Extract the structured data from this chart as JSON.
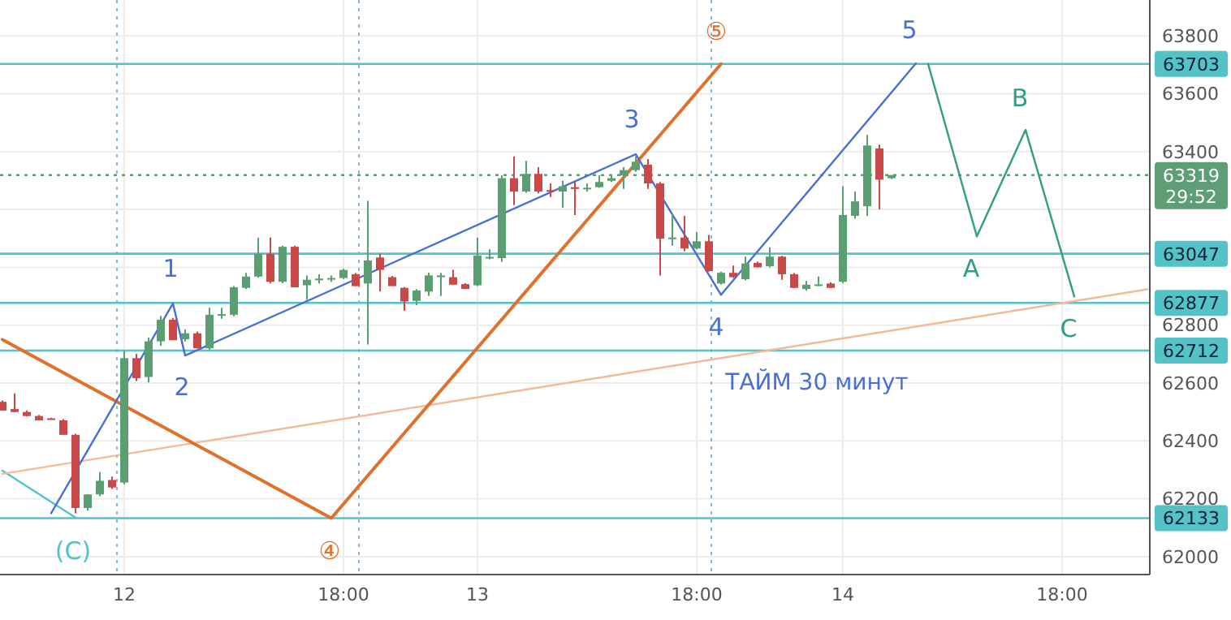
{
  "chart_data": {
    "type": "candlestick",
    "categories": [
      null,
      null,
      null,
      null,
      null,
      null,
      null,
      null,
      null,
      null,
      "12",
      null,
      null,
      null,
      null,
      null,
      null,
      null,
      null,
      null,
      null,
      null,
      null,
      null,
      null,
      null,
      null,
      null,
      "18:00",
      null,
      null,
      null,
      null,
      null,
      null,
      null,
      null,
      null,
      null,
      "13",
      null,
      null,
      null,
      null,
      null,
      null,
      null,
      null,
      null,
      null,
      null,
      null,
      null,
      null,
      null,
      null,
      null,
      "18:00",
      null,
      null,
      null,
      null,
      null,
      null,
      null,
      null,
      null,
      null,
      null,
      "14",
      null,
      null,
      null,
      null,
      null,
      null,
      null,
      null,
      null,
      null,
      null,
      null,
      null,
      null,
      null,
      null,
      null,
      "18:00",
      null,
      null,
      null,
      null,
      null,
      null,
      null
    ],
    "ohlc": [
      [
        62535,
        62540,
        62505,
        62505
      ],
      [
        62510,
        62564,
        62499,
        62500
      ],
      [
        62500,
        62505,
        62485,
        62486
      ],
      [
        62486,
        62490,
        62471,
        62471
      ],
      [
        62478,
        62480,
        62475,
        62476
      ],
      [
        62471,
        62475,
        62421,
        62421
      ],
      [
        62421,
        62425,
        62150,
        62168
      ],
      [
        62168,
        62215,
        62159,
        62215
      ],
      [
        62215,
        62293,
        62209,
        62262
      ],
      [
        62265,
        62277,
        62234,
        62239
      ],
      [
        62256,
        62710,
        62250,
        62686
      ],
      [
        62686,
        62701,
        62607,
        62617
      ],
      [
        62621,
        62757,
        62602,
        62744
      ],
      [
        62744,
        62832,
        62729,
        62819
      ],
      [
        62819,
        62825,
        62748,
        62748
      ],
      [
        62751,
        62785,
        62744,
        62772
      ],
      [
        62772,
        62778,
        62720,
        62720
      ],
      [
        62720,
        62860,
        62715,
        62836
      ],
      [
        62836,
        62860,
        62822,
        62838
      ],
      [
        62836,
        62935,
        62830,
        62931
      ],
      [
        62929,
        62981,
        62925,
        62968
      ],
      [
        62968,
        63103,
        62965,
        63047
      ],
      [
        63047,
        63103,
        62944,
        62950
      ],
      [
        62950,
        63075,
        62945,
        63071
      ],
      [
        63071,
        63075,
        62931,
        62931
      ],
      [
        62938,
        62972,
        62888,
        62957
      ],
      [
        62959,
        62976,
        62944,
        62961
      ],
      [
        62961,
        62972,
        62950,
        62963
      ],
      [
        62963,
        62995,
        62960,
        62991
      ],
      [
        62976,
        62980,
        62935,
        62935
      ],
      [
        62944,
        63230,
        62733,
        63024
      ],
      [
        63034,
        63047,
        62916,
        62991
      ],
      [
        62966,
        62970,
        62935,
        62935
      ],
      [
        62929,
        62932,
        62850,
        62882
      ],
      [
        62884,
        62925,
        62869,
        62920
      ],
      [
        62916,
        62981,
        62901,
        62972
      ],
      [
        62966,
        62981,
        62901,
        62972
      ],
      [
        62966,
        62991,
        62940,
        62940
      ],
      [
        62942,
        62945,
        62925,
        62925
      ],
      [
        62938,
        63103,
        62935,
        63041
      ],
      [
        63034,
        63062,
        63028,
        63036
      ],
      [
        63032,
        63318,
        63019,
        63308
      ],
      [
        63308,
        63383,
        63215,
        63262
      ],
      [
        63262,
        63368,
        63258,
        63323
      ],
      [
        63323,
        63346,
        63256,
        63262
      ],
      [
        63267,
        63290,
        63243,
        63265
      ],
      [
        63262,
        63299,
        63206,
        63280
      ],
      [
        63277,
        63299,
        63181,
        63271
      ],
      [
        63273,
        63290,
        63262,
        63275
      ],
      [
        63277,
        63318,
        63275,
        63295
      ],
      [
        63299,
        63315,
        63295,
        63308
      ],
      [
        63318,
        63346,
        63271,
        63336
      ],
      [
        63336,
        63383,
        63330,
        63365
      ],
      [
        63355,
        63374,
        63271,
        63290
      ],
      [
        63290,
        63295,
        62972,
        63099
      ],
      [
        63100,
        63187,
        63075,
        63103
      ],
      [
        63103,
        63178,
        63056,
        63065
      ],
      [
        63065,
        63122,
        63062,
        63090
      ],
      [
        63090,
        63112,
        62985,
        62987
      ],
      [
        62944,
        62985,
        62940,
        62981
      ],
      [
        62981,
        63006,
        62963,
        62966
      ],
      [
        62959,
        63037,
        62955,
        63013
      ],
      [
        63015,
        63020,
        63000,
        63000
      ],
      [
        63004,
        63069,
        63000,
        63037
      ],
      [
        63037,
        63040,
        62957,
        62976
      ],
      [
        62976,
        62980,
        62929,
        62929
      ],
      [
        62925,
        62953,
        62920,
        62940
      ],
      [
        62940,
        62968,
        62935,
        62941
      ],
      [
        62944,
        62948,
        62929,
        62929
      ],
      [
        62950,
        63280,
        62945,
        63181
      ],
      [
        63178,
        63262,
        63168,
        63228
      ],
      [
        63211,
        63458,
        63178,
        63421
      ],
      [
        63411,
        63424,
        63200,
        63303
      ],
      [
        63308,
        63319,
        63305,
        63319
      ],
      null,
      null,
      null,
      null,
      null,
      null,
      null,
      null,
      null,
      null,
      null,
      null,
      null,
      null,
      null,
      null,
      null,
      null,
      null,
      null,
      null
    ],
    "colors": [
      "#c94848",
      "#c94848",
      "#c94848",
      "#c94848",
      "#c94848",
      "#c94848",
      "#c94848",
      "#5b9e72",
      "#5b9e72",
      "#c94848",
      "#5b9e72",
      "#c94848",
      "#5b9e72",
      "#5b9e72",
      "#c94848",
      "#5b9e72",
      "#c94848",
      "#5b9e72",
      "#5b9e72",
      "#5b9e72",
      "#5b9e72",
      "#5b9e72",
      "#c94848",
      "#5b9e72",
      "#c94848",
      "#5b9e72",
      "#5b9e72",
      "#5b9e72",
      "#5b9e72",
      "#c94848",
      "#5b9e72",
      "#c94848",
      "#c94848",
      "#c94848",
      "#5b9e72",
      "#5b9e72",
      "#5b9e72",
      "#c94848",
      "#c94848",
      "#5b9e72",
      "#5b9e72",
      "#5b9e72",
      "#c94848",
      "#5b9e72",
      "#c94848",
      "#c94848",
      "#5b9e72",
      "#c94848",
      "#5b9e72",
      "#5b9e72",
      "#5b9e72",
      "#5b9e72",
      "#5b9e72",
      "#c94848",
      "#c94848",
      "#5b9e72",
      "#c94848",
      "#5b9e72",
      "#c94848",
      "#5b9e72",
      "#c94848",
      "#5b9e72",
      "#c94848",
      "#5b9e72",
      "#c94848",
      "#c94848",
      "#5b9e72",
      "#5b9e72",
      "#c94848",
      "#5b9e72",
      "#5b9e72",
      "#5b9e72",
      "#c94848",
      "#5b9e72",
      null,
      null,
      null,
      null,
      null,
      null,
      null,
      null,
      null,
      null,
      null,
      null,
      null,
      null,
      null,
      null,
      null,
      null,
      null,
      null,
      null
    ],
    "series": [
      {
        "type": "line",
        "values": [
          62297,
          null,
          null,
          null,
          null,
          null,
          62135,
          null,
          null,
          null,
          null,
          null,
          null,
          null,
          null,
          null,
          null,
          null,
          null,
          null,
          null,
          null,
          null,
          null,
          null,
          null,
          null,
          null,
          null,
          null,
          null,
          null,
          null,
          null,
          null,
          null,
          null,
          null,
          null,
          null,
          null,
          null,
          null,
          null,
          null,
          null,
          null,
          null,
          null,
          null,
          null,
          null,
          null,
          null,
          null,
          null,
          null,
          null,
          null,
          null,
          null,
          null,
          null,
          null,
          null,
          null,
          null,
          null,
          null,
          null,
          null,
          null,
          null,
          null,
          null,
          null,
          null,
          null,
          null,
          null,
          null,
          null,
          null,
          null,
          null,
          null,
          null,
          null,
          null,
          null,
          null,
          null,
          null,
          null,
          null
        ],
        "color": "#53c2c9"
      },
      {
        "type": "line",
        "values": [
          62286,
          null,
          null,
          null,
          null,
          null,
          null,
          null,
          null,
          null,
          null,
          null,
          null,
          null,
          null,
          null,
          null,
          null,
          null,
          null,
          null,
          null,
          null,
          null,
          null,
          null,
          null,
          null,
          null,
          null,
          null,
          null,
          null,
          null,
          null,
          null,
          null,
          null,
          null,
          null,
          null,
          null,
          null,
          null,
          null,
          null,
          null,
          null,
          null,
          null,
          null,
          null,
          null,
          null,
          null,
          null,
          null,
          null,
          null,
          null,
          null,
          null,
          null,
          null,
          null,
          null,
          null,
          null,
          null,
          null,
          null,
          null,
          null,
          null,
          null,
          null,
          null,
          null,
          null,
          null,
          null,
          null,
          null,
          null,
          null,
          null,
          null,
          null,
          null,
          null,
          null,
          null,
          null,
          null,
          62924
        ],
        "color": "#f3b999"
      },
      {
        "type": "line",
        "values": [
          62750,
          null,
          null,
          null,
          null,
          null,
          null,
          null,
          null,
          null,
          null,
          null,
          null,
          null,
          null,
          null,
          null,
          null,
          null,
          null,
          null,
          null,
          null,
          null,
          null,
          null,
          null,
          62133,
          null,
          null,
          null,
          null,
          null,
          null,
          null,
          null,
          null,
          null,
          null,
          null,
          null,
          null,
          null,
          null,
          null,
          null,
          null,
          null,
          null,
          null,
          null,
          null,
          null,
          null,
          null,
          null,
          null,
          null,
          null,
          63703,
          null,
          null,
          null,
          null,
          null,
          null,
          null,
          null,
          null,
          null,
          null,
          null,
          null,
          null,
          null,
          null,
          null,
          null,
          null,
          null,
          null,
          null,
          null,
          null,
          null,
          null,
          null,
          null,
          null,
          null,
          null,
          null,
          null,
          null,
          null
        ],
        "color": "#e0702a"
      },
      {
        "type": "line",
        "values": [
          null,
          null,
          null,
          null,
          62150,
          null,
          null,
          null,
          null,
          null,
          null,
          null,
          null,
          null,
          62875,
          62695,
          null,
          null,
          null,
          null,
          null,
          null,
          null,
          null,
          null,
          null,
          null,
          null,
          null,
          null,
          null,
          null,
          null,
          null,
          null,
          null,
          null,
          null,
          null,
          null,
          null,
          null,
          null,
          null,
          null,
          null,
          null,
          null,
          null,
          null,
          null,
          null,
          63391,
          null,
          null,
          null,
          null,
          null,
          null,
          62905,
          null,
          null,
          null,
          null,
          null,
          null,
          null,
          null,
          null,
          null,
          null,
          null,
          null,
          null,
          null,
          63705,
          null,
          null,
          null,
          null,
          null,
          null,
          null,
          null,
          null,
          null,
          null,
          null,
          null,
          null,
          null,
          null,
          null,
          null,
          null
        ],
        "color": "#4a6fd4"
      },
      {
        "type": "line",
        "values": [
          null,
          null,
          null,
          null,
          null,
          null,
          null,
          null,
          null,
          null,
          null,
          null,
          null,
          null,
          null,
          null,
          null,
          null,
          null,
          null,
          null,
          null,
          null,
          null,
          null,
          null,
          null,
          null,
          null,
          null,
          null,
          null,
          null,
          null,
          null,
          null,
          null,
          null,
          null,
          null,
          null,
          null,
          null,
          null,
          null,
          null,
          null,
          null,
          null,
          null,
          null,
          null,
          null,
          null,
          null,
          null,
          null,
          null,
          null,
          null,
          null,
          null,
          null,
          null,
          null,
          null,
          null,
          null,
          null,
          null,
          null,
          null,
          null,
          null,
          null,
          null,
          63703,
          null,
          null,
          null,
          63107,
          null,
          null,
          null,
          63475,
          null,
          null,
          null,
          62899,
          null,
          null,
          null,
          null,
          null,
          null
        ],
        "color": "#2f9e86"
      }
    ],
    "ref_lines": [
      {
        "axis": "y",
        "value": 63703,
        "label": "63703",
        "color": "#53c2c9"
      },
      {
        "axis": "y",
        "value": 63047,
        "label": "63047",
        "color": "#53c2c9"
      },
      {
        "axis": "y",
        "value": 62877,
        "label": "62877",
        "color": "#53c2c9"
      },
      {
        "axis": "y",
        "value": 62712,
        "label": "62712",
        "color": "#53c2c9"
      },
      {
        "axis": "y",
        "value": 62133,
        "label": "62133",
        "color": "#53c2c9"
      },
      {
        "axis": "y",
        "value": 63319,
        "label": "63319\n29:52",
        "color": "#5e9e76",
        "line_style": "dotted"
      }
    ],
    "annotations": [
      "(C)",
      "1",
      "2",
      "3",
      "4",
      "5",
      "④",
      "⑤",
      "A",
      "B",
      "C",
      "ТАЙМ 30 минут"
    ],
    "ylim": [
      61938,
      63924
    ],
    "yticks": [
      62000,
      62200,
      62400,
      62600,
      62800,
      {
        "value": 63000,
        "label": null
      },
      {
        "value": 63200,
        "label": null
      },
      63400,
      63600,
      63800
    ],
    "grid": true
  }
}
